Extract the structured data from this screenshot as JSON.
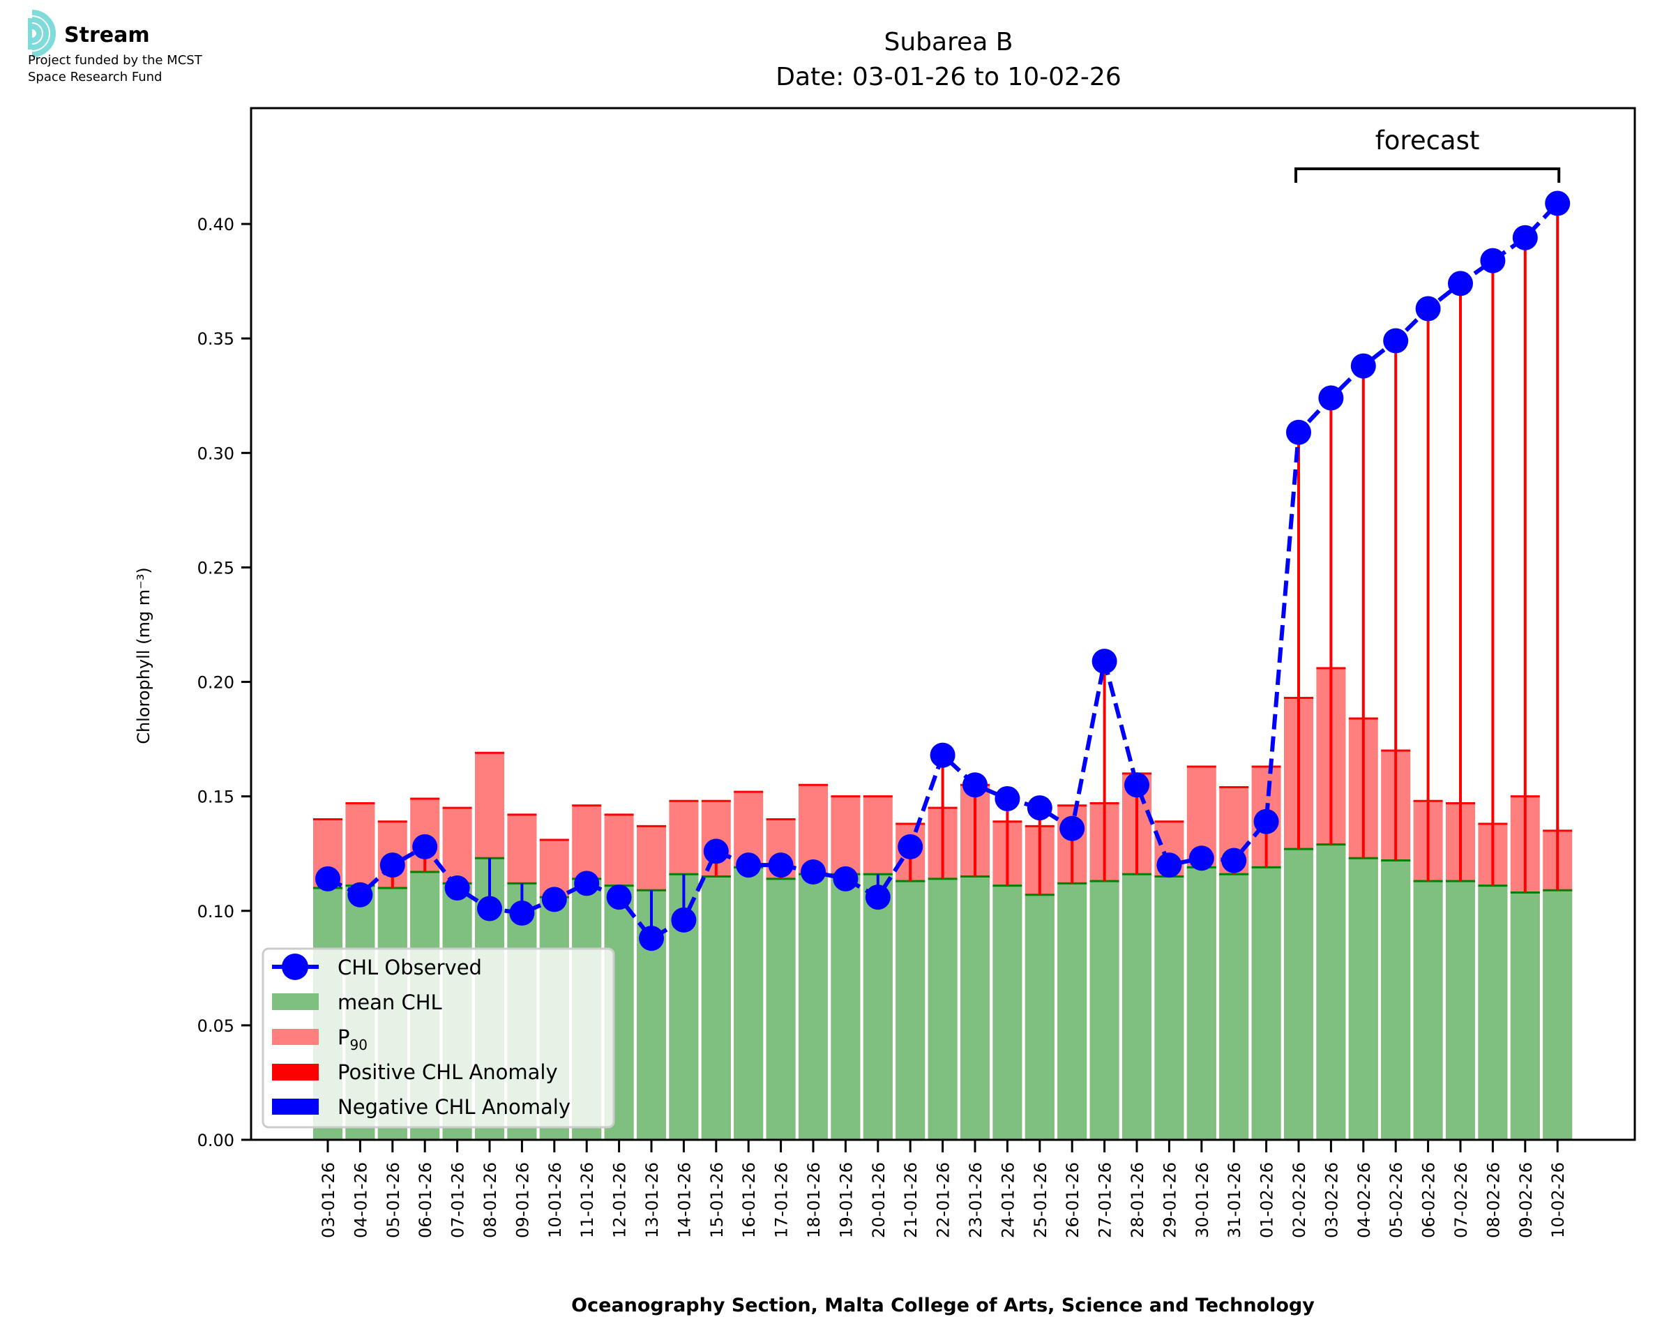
{
  "logo": {
    "name": "Stream",
    "subtitle_lines": [
      "Project funded by the MCST",
      "Space Research Fund"
    ],
    "icon": "stream-waves-icon",
    "color": "#7fdbda"
  },
  "colors": {
    "observed": "#0000ff",
    "mean": "#7fbf7f",
    "mean_edge": "#008000",
    "p90": "#ff7f7f",
    "p90_edge": "#ff0000",
    "positive_anomaly": "#ff0000",
    "negative_anomaly": "#0000ff"
  },
  "chart_data": {
    "type": "bar",
    "title": "Subarea B",
    "subtitle": "Date: 03-01-26 to 10-02-26",
    "xlabel": "Oceanography Section, Malta College of Arts, Science and Technology",
    "ylabel": "Chlorophyll (mg m⁻³)",
    "ylim": [
      0,
      0.4506
    ],
    "yticks": [
      0.0,
      0.05,
      0.1,
      0.15,
      0.2,
      0.25,
      0.3,
      0.35,
      0.4
    ],
    "ytick_labels": [
      "0.00",
      "0.05",
      "0.10",
      "0.15",
      "0.20",
      "0.25",
      "0.30",
      "0.35",
      "0.40"
    ],
    "grid": false,
    "legend_position": "lower-left",
    "categories": [
      "03-01-26",
      "04-01-26",
      "05-01-26",
      "06-01-26",
      "07-01-26",
      "08-01-26",
      "09-01-26",
      "10-01-26",
      "11-01-26",
      "12-01-26",
      "13-01-26",
      "14-01-26",
      "15-01-26",
      "16-01-26",
      "17-01-26",
      "18-01-26",
      "19-01-26",
      "20-01-26",
      "21-01-26",
      "22-01-26",
      "23-01-26",
      "24-01-26",
      "25-01-26",
      "26-01-26",
      "27-01-26",
      "28-01-26",
      "29-01-26",
      "30-01-26",
      "31-01-26",
      "01-02-26",
      "02-02-26",
      "03-02-26",
      "04-02-26",
      "05-02-26",
      "06-02-26",
      "07-02-26",
      "08-02-26",
      "09-02-26",
      "10-02-26"
    ],
    "series": [
      {
        "name": "CHL Observed",
        "type": "line",
        "values": [
          0.114,
          0.107,
          0.12,
          0.128,
          0.11,
          0.101,
          0.099,
          0.105,
          0.112,
          0.106,
          0.088,
          0.096,
          0.126,
          0.12,
          0.12,
          0.117,
          0.114,
          0.106,
          0.128,
          0.168,
          0.155,
          0.149,
          0.145,
          0.136,
          0.209,
          0.155,
          0.12,
          0.123,
          0.122,
          0.139,
          0.309,
          0.324,
          0.338,
          0.349,
          0.363,
          0.374,
          0.384,
          0.394,
          0.409
        ]
      },
      {
        "name": "mean CHL",
        "type": "bar",
        "values": [
          0.11,
          0.111,
          0.11,
          0.117,
          0.112,
          0.123,
          0.112,
          0.106,
          0.114,
          0.111,
          0.109,
          0.116,
          0.115,
          0.119,
          0.114,
          0.116,
          0.116,
          0.116,
          0.113,
          0.114,
          0.115,
          0.111,
          0.107,
          0.112,
          0.113,
          0.116,
          0.115,
          0.119,
          0.116,
          0.119,
          0.127,
          0.129,
          0.123,
          0.122,
          0.113,
          0.113,
          0.111,
          0.108,
          0.109
        ]
      },
      {
        "name": "P₉₀",
        "type": "bar",
        "values": [
          0.14,
          0.147,
          0.139,
          0.149,
          0.145,
          0.169,
          0.142,
          0.131,
          0.146,
          0.142,
          0.137,
          0.148,
          0.148,
          0.152,
          0.14,
          0.155,
          0.15,
          0.15,
          0.138,
          0.145,
          0.155,
          0.139,
          0.137,
          0.146,
          0.147,
          0.16,
          0.139,
          0.163,
          0.154,
          0.163,
          0.193,
          0.206,
          0.184,
          0.17,
          0.148,
          0.147,
          0.138,
          0.15,
          0.135
        ]
      }
    ],
    "annotations": [
      {
        "text": "forecast",
        "from": "02-02-26",
        "to": "10-02-26"
      }
    ],
    "legend": [
      {
        "label": "CHL Observed",
        "marker": "line-circle",
        "color": "#0000ff"
      },
      {
        "label": "mean CHL",
        "marker": "patch",
        "color": "#7fbf7f"
      },
      {
        "label": "P",
        "sub": "90",
        "marker": "patch",
        "color": "#ff7f7f"
      },
      {
        "label": "Positive CHL Anomaly",
        "marker": "patch",
        "color": "#ff0000"
      },
      {
        "label": "Negative CHL Anomaly",
        "marker": "patch",
        "color": "#0000ff"
      }
    ],
    "forecast_start_index": 30
  }
}
